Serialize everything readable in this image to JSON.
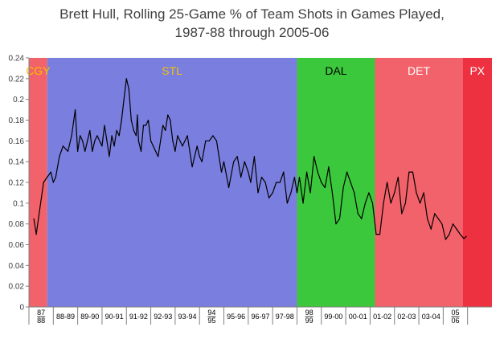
{
  "chart_data": {
    "type": "line",
    "title_line1": "Brett Hull, Rolling 25-Game % of Team Shots in Games Played,",
    "title_line2": "1987-88 through 2005-06",
    "xlabel": "",
    "ylabel": "",
    "ylim": [
      0,
      0.24
    ],
    "yticks": [
      "0",
      "0.02",
      "0.04",
      "0.06",
      "0.08",
      "0.1",
      "0.12",
      "0.14",
      "0.16",
      "0.18",
      "0.2",
      "0.22",
      "0.24"
    ],
    "x_range": [
      0,
      19
    ],
    "grid": false,
    "seasons": [
      {
        "label": [
          "87",
          "88"
        ],
        "start": 0,
        "end": 1
      },
      {
        "label": [
          "88-89"
        ],
        "start": 1,
        "end": 2
      },
      {
        "label": [
          "89-90"
        ],
        "start": 2,
        "end": 3
      },
      {
        "label": [
          "90-91"
        ],
        "start": 3,
        "end": 4
      },
      {
        "label": [
          "91-92"
        ],
        "start": 4,
        "end": 5
      },
      {
        "label": [
          "92-93"
        ],
        "start": 5,
        "end": 6
      },
      {
        "label": [
          "93-94"
        ],
        "start": 6,
        "end": 7
      },
      {
        "label": [
          "94",
          "95"
        ],
        "start": 7,
        "end": 8
      },
      {
        "label": [
          "95-96"
        ],
        "start": 8,
        "end": 9
      },
      {
        "label": [
          "96-97"
        ],
        "start": 9,
        "end": 10
      },
      {
        "label": [
          "97-98"
        ],
        "start": 10,
        "end": 11
      },
      {
        "label": [
          "98",
          "99"
        ],
        "start": 11,
        "end": 12
      },
      {
        "label": [
          "99-00"
        ],
        "start": 12,
        "end": 13
      },
      {
        "label": [
          "00-01"
        ],
        "start": 13,
        "end": 14
      },
      {
        "label": [
          "01-02"
        ],
        "start": 14,
        "end": 15
      },
      {
        "label": [
          "02-03"
        ],
        "start": 15,
        "end": 16
      },
      {
        "label": [
          "03-04"
        ],
        "start": 16,
        "end": 17
      },
      {
        "label": [
          "05",
          "06"
        ],
        "start": 17,
        "end": 18
      }
    ],
    "teams": [
      {
        "name": "CGY",
        "start": 0,
        "end": 0.75,
        "color": "#f2626b",
        "label_color": "#f2c200"
      },
      {
        "name": "STL",
        "start": 0.75,
        "end": 11,
        "color": "#7a7ede",
        "label_color": "#f2c200"
      },
      {
        "name": "DAL",
        "start": 11,
        "end": 14.2,
        "color": "#3cc83c",
        "label_color": "#000000"
      },
      {
        "name": "DET",
        "start": 14.2,
        "end": 17.8,
        "color": "#f2626b",
        "label_color": "#ffffff"
      },
      {
        "name": "PX",
        "start": 17.8,
        "end": 19,
        "color": "#ee3140",
        "label_color": "#ffffff"
      }
    ],
    "series": [
      {
        "x": [
          0.2,
          0.3,
          0.45,
          0.6,
          0.75,
          0.9,
          1.0,
          1.1,
          1.25,
          1.4,
          1.6,
          1.75,
          1.9,
          2.0,
          2.1,
          2.2,
          2.3,
          2.4,
          2.5,
          2.6,
          2.7,
          2.8,
          3.0,
          3.1,
          3.2,
          3.3,
          3.4,
          3.5,
          3.6,
          3.7,
          3.8,
          3.9,
          4.0,
          4.1,
          4.2,
          4.3,
          4.4,
          4.45,
          4.5,
          4.6,
          4.7,
          4.8,
          4.9,
          5.0,
          5.1,
          5.2,
          5.3,
          5.4,
          5.5,
          5.6,
          5.7,
          5.8,
          5.9,
          6.0,
          6.1,
          6.3,
          6.5,
          6.7,
          6.9,
          7.0,
          7.1,
          7.25,
          7.4,
          7.55,
          7.7,
          7.9,
          8.0,
          8.2,
          8.4,
          8.55,
          8.7,
          8.85,
          9.0,
          9.1,
          9.25,
          9.4,
          9.55,
          9.7,
          9.85,
          10.0,
          10.15,
          10.3,
          10.45,
          10.6,
          10.75,
          10.9,
          11.0,
          11.1,
          11.25,
          11.4,
          11.55,
          11.7,
          11.85,
          12.0,
          12.15,
          12.3,
          12.45,
          12.6,
          12.75,
          12.9,
          13.05,
          13.2,
          13.35,
          13.5,
          13.65,
          13.8,
          13.95,
          14.1,
          14.25,
          14.4,
          14.55,
          14.7,
          14.85,
          15.0,
          15.15,
          15.3,
          15.45,
          15.6,
          15.75,
          15.9,
          16.05,
          16.2,
          16.35,
          16.5,
          16.65,
          16.8,
          16.95,
          17.1,
          17.25,
          17.4,
          17.55,
          17.7,
          17.85,
          17.95
        ],
        "values": [
          0.085,
          0.07,
          0.095,
          0.12,
          0.125,
          0.13,
          0.12,
          0.125,
          0.145,
          0.155,
          0.15,
          0.165,
          0.19,
          0.15,
          0.165,
          0.16,
          0.15,
          0.16,
          0.17,
          0.15,
          0.16,
          0.165,
          0.155,
          0.175,
          0.16,
          0.145,
          0.165,
          0.155,
          0.17,
          0.165,
          0.18,
          0.2,
          0.22,
          0.21,
          0.18,
          0.17,
          0.165,
          0.185,
          0.16,
          0.15,
          0.175,
          0.175,
          0.18,
          0.16,
          0.155,
          0.15,
          0.145,
          0.16,
          0.175,
          0.17,
          0.185,
          0.18,
          0.16,
          0.15,
          0.165,
          0.155,
          0.165,
          0.135,
          0.155,
          0.145,
          0.14,
          0.16,
          0.16,
          0.165,
          0.16,
          0.13,
          0.14,
          0.115,
          0.14,
          0.145,
          0.125,
          0.14,
          0.13,
          0.12,
          0.145,
          0.11,
          0.125,
          0.12,
          0.105,
          0.11,
          0.12,
          0.12,
          0.13,
          0.1,
          0.11,
          0.125,
          0.11,
          0.125,
          0.1,
          0.13,
          0.11,
          0.145,
          0.13,
          0.12,
          0.115,
          0.135,
          0.11,
          0.08,
          0.085,
          0.115,
          0.13,
          0.12,
          0.11,
          0.09,
          0.085,
          0.1,
          0.11,
          0.1,
          0.07,
          0.07,
          0.1,
          0.12,
          0.1,
          0.11,
          0.125,
          0.09,
          0.1,
          0.13,
          0.13,
          0.11,
          0.1,
          0.11,
          0.085,
          0.075,
          0.09,
          0.085,
          0.08,
          0.065,
          0.07,
          0.08,
          0.075,
          0.07,
          0.066,
          0.068
        ]
      }
    ]
  }
}
